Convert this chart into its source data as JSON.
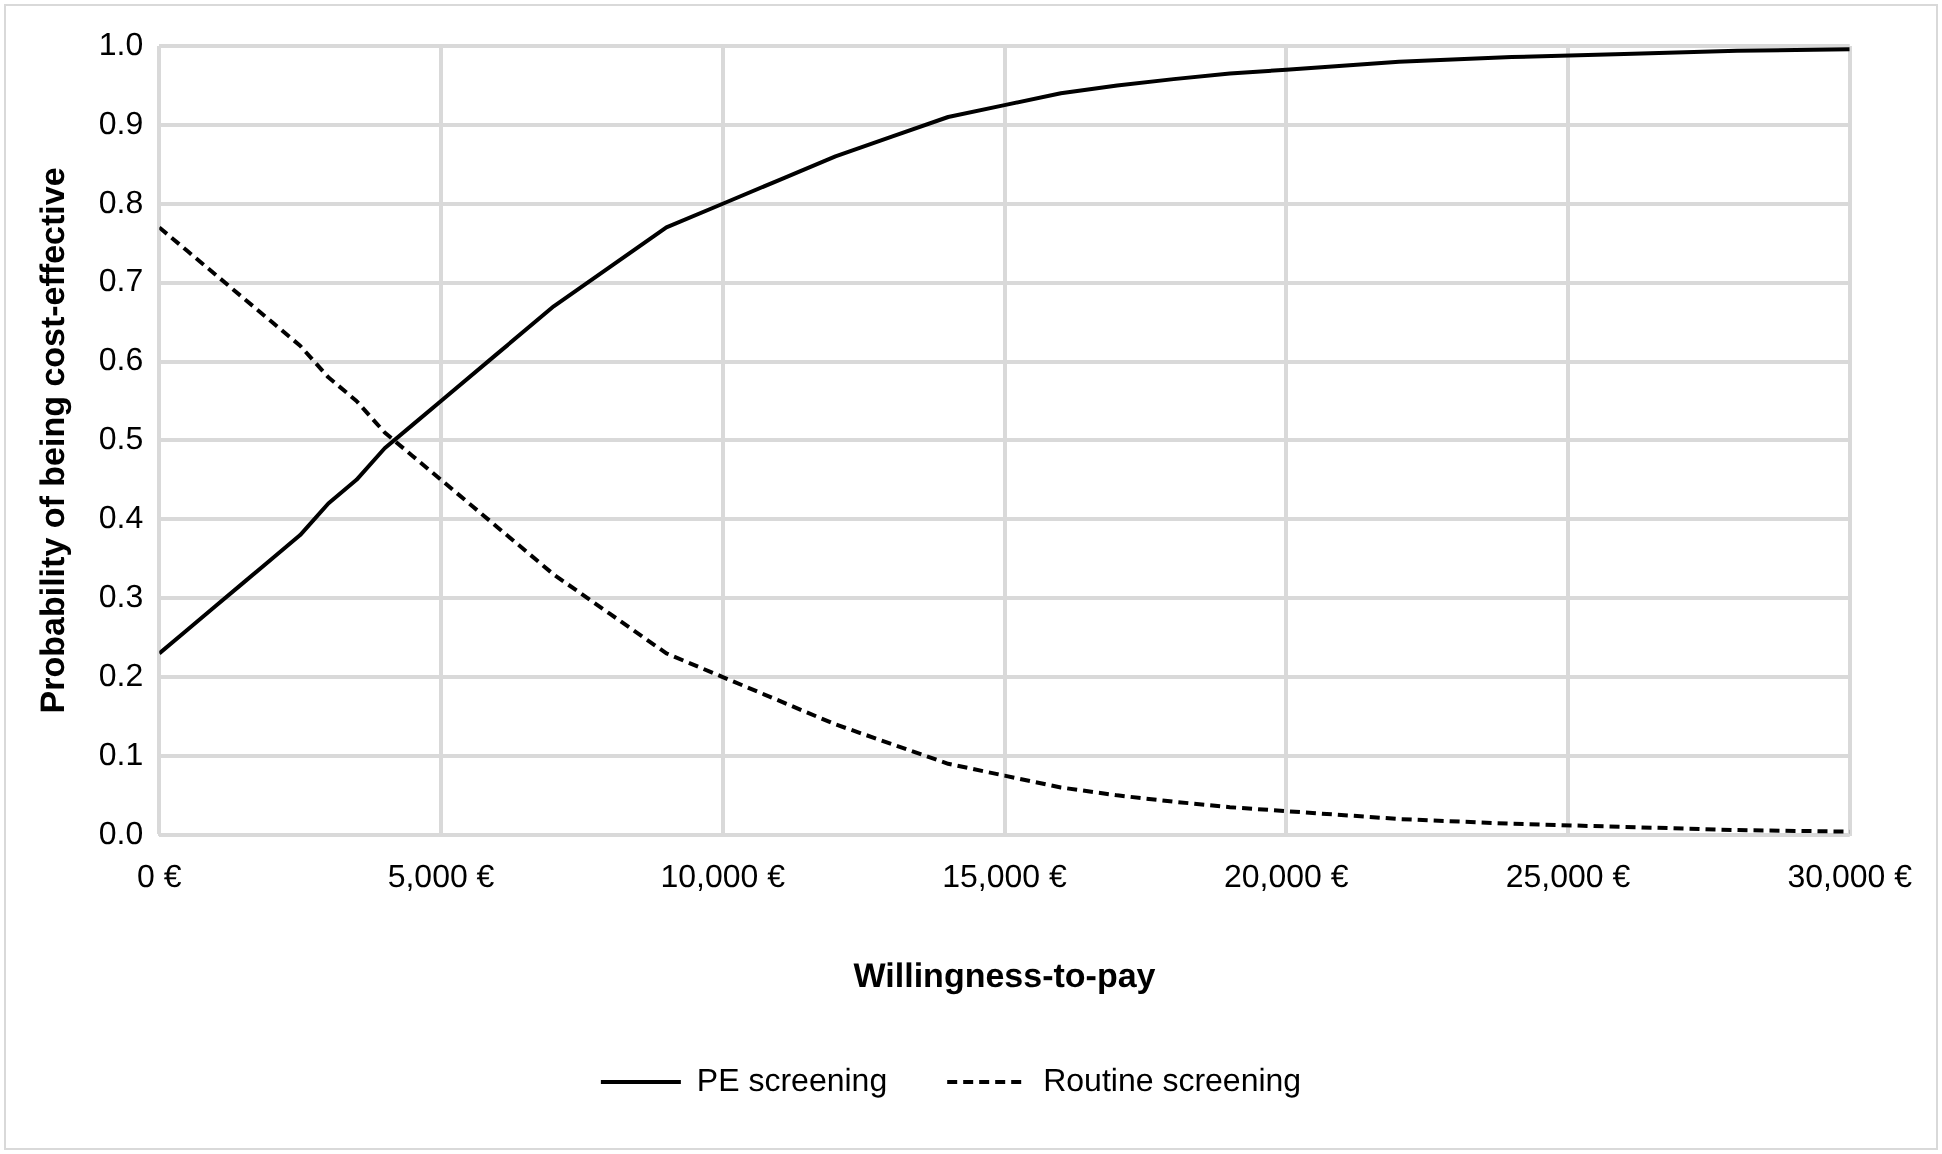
{
  "chart_data": {
    "type": "line",
    "xlabel": "Willingness-to-pay",
    "ylabel": "Probability of being cost-effective",
    "x": [
      0,
      500,
      1000,
      1500,
      2000,
      2500,
      3000,
      3500,
      4000,
      4500,
      5000,
      6000,
      7000,
      8000,
      9000,
      10000,
      11000,
      12000,
      13000,
      14000,
      15000,
      16000,
      17000,
      18000,
      19000,
      20000,
      22000,
      24000,
      26000,
      28000,
      30000
    ],
    "series": [
      {
        "name": "PE screening",
        "color": "#000000",
        "line_style": "solid",
        "values": [
          0.23,
          0.26,
          0.29,
          0.32,
          0.35,
          0.38,
          0.42,
          0.45,
          0.49,
          0.52,
          0.55,
          0.61,
          0.67,
          0.72,
          0.77,
          0.8,
          0.83,
          0.86,
          0.885,
          0.91,
          0.925,
          0.94,
          0.95,
          0.958,
          0.965,
          0.97,
          0.98,
          0.986,
          0.99,
          0.994,
          0.996
        ]
      },
      {
        "name": "Routine screening",
        "color": "#000000",
        "line_style": "dashed",
        "values": [
          0.77,
          0.74,
          0.71,
          0.68,
          0.65,
          0.62,
          0.58,
          0.55,
          0.51,
          0.48,
          0.45,
          0.39,
          0.33,
          0.28,
          0.23,
          0.2,
          0.17,
          0.14,
          0.115,
          0.09,
          0.075,
          0.06,
          0.05,
          0.042,
          0.035,
          0.03,
          0.02,
          0.014,
          0.01,
          0.006,
          0.004
        ]
      }
    ],
    "xlim": [
      0,
      30000
    ],
    "xticks": [
      {
        "value": 0,
        "label": "0 €"
      },
      {
        "value": 5000,
        "label": "5,000 €"
      },
      {
        "value": 10000,
        "label": "10,000 €"
      },
      {
        "value": 15000,
        "label": "15,000 €"
      },
      {
        "value": 20000,
        "label": "20,000 €"
      },
      {
        "value": 25000,
        "label": "25,000 €"
      },
      {
        "value": 30000,
        "label": "30,000 €"
      }
    ],
    "ylim": [
      0,
      1
    ],
    "yticks": [
      {
        "value": 0,
        "label": "0.0"
      },
      {
        "value": 0.1,
        "label": "0.1"
      },
      {
        "value": 0.2,
        "label": "0.2"
      },
      {
        "value": 0.3,
        "label": "0.3"
      },
      {
        "value": 0.4,
        "label": "0.4"
      },
      {
        "value": 0.5,
        "label": "0.5"
      },
      {
        "value": 0.6,
        "label": "0.6"
      },
      {
        "value": 0.7,
        "label": "0.7"
      },
      {
        "value": 0.8,
        "label": "0.8"
      },
      {
        "value": 0.9,
        "label": "0.9"
      },
      {
        "value": 1,
        "label": "1.0"
      }
    ],
    "grid": true,
    "legend": "bottom",
    "marker": "none"
  }
}
